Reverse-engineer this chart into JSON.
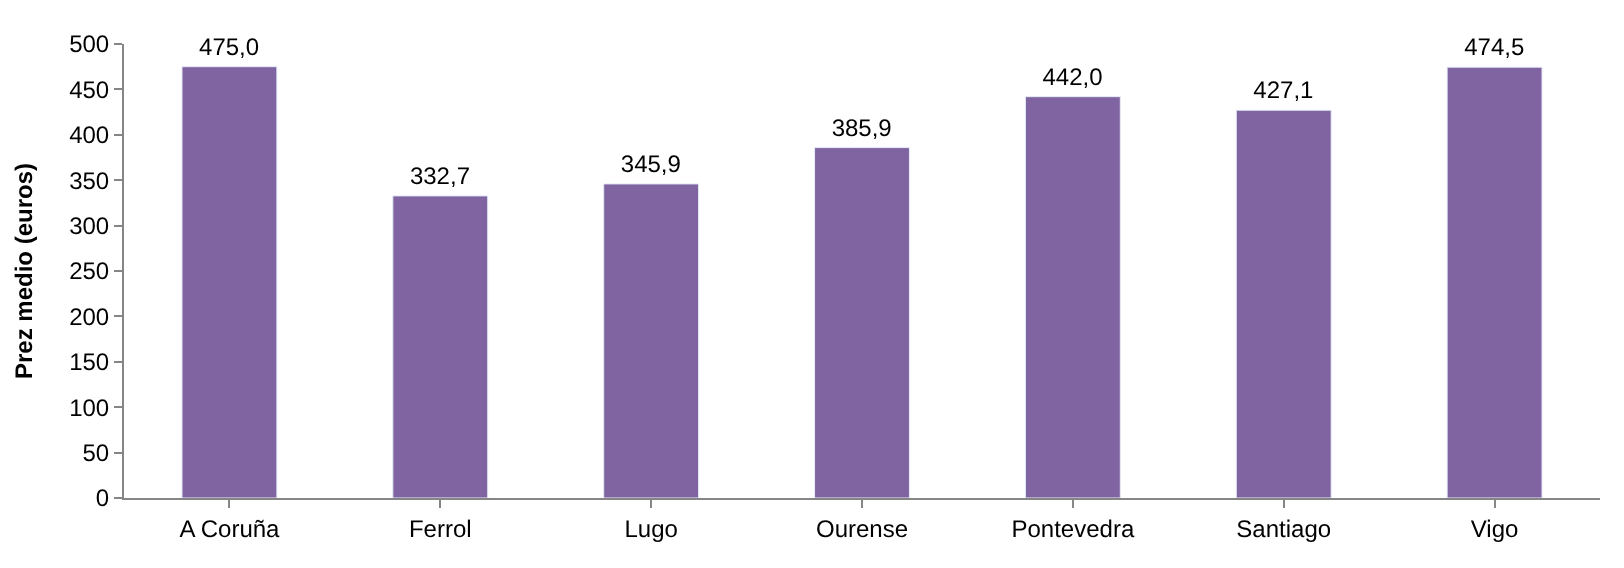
{
  "chart_data": {
    "type": "bar",
    "ylabel": "Prez medio (euros)",
    "categories": [
      "A Coruña",
      "Ferrol",
      "Lugo",
      "Ourense",
      "Pontevedra",
      "Santiago",
      "Vigo"
    ],
    "values": [
      475.0,
      332.7,
      345.9,
      385.9,
      442.0,
      427.1,
      474.5
    ],
    "value_labels": [
      "475,0",
      "332,7",
      "345,9",
      "385,9",
      "442,0",
      "427,1",
      "474,5"
    ],
    "color": "#8064a2",
    "ylim": [
      0,
      500
    ],
    "yticks": [
      0,
      50,
      100,
      150,
      200,
      250,
      300,
      350,
      400,
      450,
      500
    ]
  }
}
